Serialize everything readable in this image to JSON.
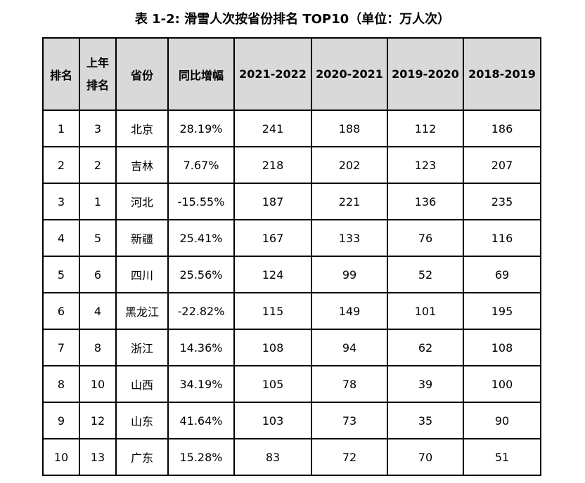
{
  "title": "表 1-2: 滑雪人次按省份排名 TOP10（单位：万人次）",
  "headers": {
    "rank": "排名",
    "prev_rank_line1": "上年",
    "prev_rank_line2": "排名",
    "province": "省份",
    "yoy": "同比增幅",
    "y2021_2022": "2021-2022",
    "y2020_2021": "2020-2021",
    "y2019_2020": "2019-2020",
    "y2018_2019": "2018-2019"
  },
  "rows": [
    {
      "rank": "1",
      "prev": "3",
      "province": "北京",
      "yoy": "28.19%",
      "y1": "241",
      "y2": "188",
      "y3": "112",
      "y4": "186"
    },
    {
      "rank": "2",
      "prev": "2",
      "province": "吉林",
      "yoy": "7.67%",
      "y1": "218",
      "y2": "202",
      "y3": "123",
      "y4": "207"
    },
    {
      "rank": "3",
      "prev": "1",
      "province": "河北",
      "yoy": "-15.55%",
      "y1": "187",
      "y2": "221",
      "y3": "136",
      "y4": "235"
    },
    {
      "rank": "4",
      "prev": "5",
      "province": "新疆",
      "yoy": "25.41%",
      "y1": "167",
      "y2": "133",
      "y3": "76",
      "y4": "116"
    },
    {
      "rank": "5",
      "prev": "6",
      "province": "四川",
      "yoy": "25.56%",
      "y1": "124",
      "y2": "99",
      "y3": "52",
      "y4": "69"
    },
    {
      "rank": "6",
      "prev": "4",
      "province": "黑龙江",
      "yoy": "-22.82%",
      "y1": "115",
      "y2": "149",
      "y3": "101",
      "y4": "195"
    },
    {
      "rank": "7",
      "prev": "8",
      "province": "浙江",
      "yoy": "14.36%",
      "y1": "108",
      "y2": "94",
      "y3": "62",
      "y4": "108"
    },
    {
      "rank": "8",
      "prev": "10",
      "province": "山西",
      "yoy": "34.19%",
      "y1": "105",
      "y2": "78",
      "y3": "39",
      "y4": "100"
    },
    {
      "rank": "9",
      "prev": "12",
      "province": "山东",
      "yoy": "41.64%",
      "y1": "103",
      "y2": "73",
      "y3": "35",
      "y4": "90"
    },
    {
      "rank": "10",
      "prev": "13",
      "province": "广东",
      "yoy": "15.28%",
      "y1": "83",
      "y2": "72",
      "y3": "70",
      "y4": "51"
    }
  ]
}
